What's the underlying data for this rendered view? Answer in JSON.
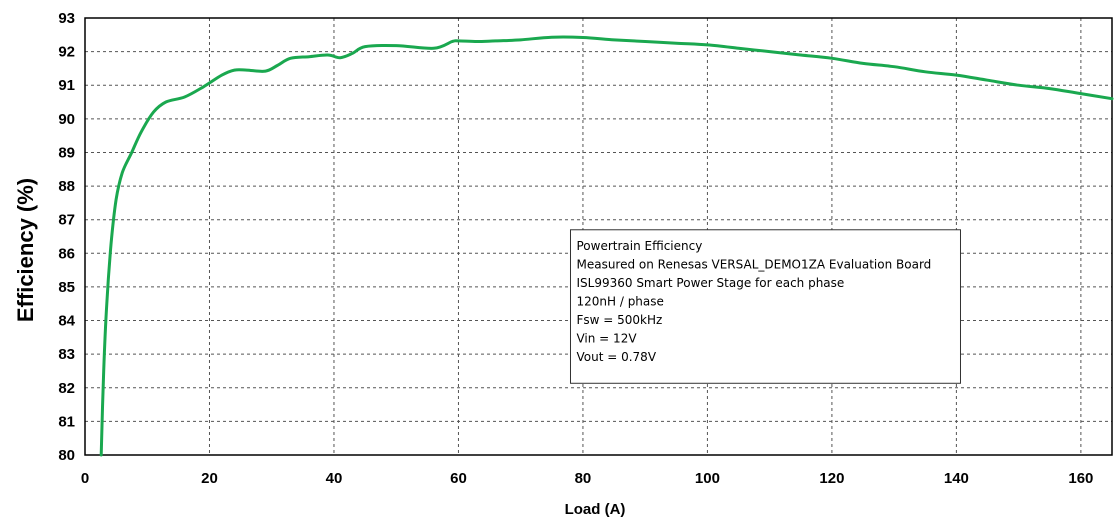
{
  "chart_data": {
    "type": "line",
    "title": "",
    "xlabel": "Load (A)",
    "ylabel": "Efficiency (%)",
    "xlim": [
      0,
      165
    ],
    "ylim": [
      80,
      93
    ],
    "x_ticks": [
      0,
      20,
      40,
      60,
      80,
      100,
      120,
      140,
      160
    ],
    "y_ticks": [
      80,
      81,
      82,
      83,
      84,
      85,
      86,
      87,
      88,
      89,
      90,
      91,
      92,
      93
    ],
    "grid": true,
    "series": [
      {
        "color": "#1aa84f",
        "points": [
          [
            2.6,
            80.0
          ],
          [
            3.0,
            82.5
          ],
          [
            3.5,
            84.5
          ],
          [
            4.2,
            86.3
          ],
          [
            5.0,
            87.6
          ],
          [
            6.0,
            88.4
          ],
          [
            7.5,
            89.0
          ],
          [
            9.0,
            89.6
          ],
          [
            11.0,
            90.2
          ],
          [
            13.0,
            90.5
          ],
          [
            16.0,
            90.65
          ],
          [
            19.0,
            90.95
          ],
          [
            22.0,
            91.3
          ],
          [
            24.0,
            91.45
          ],
          [
            26.0,
            91.45
          ],
          [
            29.0,
            91.42
          ],
          [
            31.0,
            91.6
          ],
          [
            33.0,
            91.8
          ],
          [
            36.0,
            91.85
          ],
          [
            39.0,
            91.9
          ],
          [
            41.0,
            91.82
          ],
          [
            43.0,
            91.95
          ],
          [
            45.0,
            92.15
          ],
          [
            50.0,
            92.18
          ],
          [
            56.0,
            92.1
          ],
          [
            59.0,
            92.3
          ],
          [
            60.0,
            92.32
          ],
          [
            63.0,
            92.3
          ],
          [
            66.0,
            92.32
          ],
          [
            70.0,
            92.35
          ],
          [
            75.0,
            92.43
          ],
          [
            80.0,
            92.42
          ],
          [
            85.0,
            92.35
          ],
          [
            90.0,
            92.3
          ],
          [
            95.0,
            92.25
          ],
          [
            100.0,
            92.2
          ],
          [
            105.0,
            92.1
          ],
          [
            110.0,
            92.0
          ],
          [
            115.0,
            91.9
          ],
          [
            120.0,
            91.8
          ],
          [
            125.0,
            91.65
          ],
          [
            130.0,
            91.55
          ],
          [
            135.0,
            91.4
          ],
          [
            140.0,
            91.3
          ],
          [
            145.0,
            91.15
          ],
          [
            150.0,
            91.0
          ],
          [
            155.0,
            90.9
          ],
          [
            160.0,
            90.75
          ],
          [
            165.0,
            90.6
          ]
        ]
      }
    ],
    "annotation": {
      "lines": [
        "Powertrain Efficiency",
        "Measured on Renesas VERSAL_DEMO1ZA Evaluation Board",
        "ISL99360 Smart Power Stage for each phase",
        "120nH / phase",
        "Fsw = 500kHz",
        "Vin = 12V",
        "Vout = 0.78V"
      ],
      "anchor_x": 78,
      "anchor_y": 86.7
    }
  }
}
